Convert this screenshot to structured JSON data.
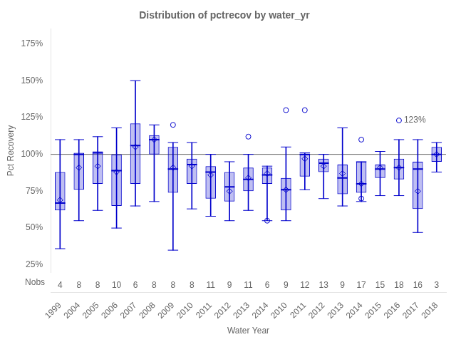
{
  "chart_data": {
    "type": "box",
    "title": "Distribution of pctrecov by water_yr",
    "xlabel": "Water Year",
    "ylabel": "Pct Recovery",
    "categories": [
      "1999",
      "2004",
      "2005",
      "2006",
      "2007",
      "2008",
      "2009",
      "2010",
      "2011",
      "2012",
      "2013",
      "2014",
      "2010",
      "2011",
      "2012",
      "2013",
      "2014",
      "2015",
      "2016",
      "2017",
      "2018"
    ],
    "nobs_label": "Nobs",
    "nobs": [
      4,
      8,
      8,
      10,
      6,
      8,
      8,
      8,
      11,
      9,
      11,
      6,
      9,
      12,
      13,
      9,
      17,
      15,
      18,
      16,
      3
    ],
    "boxes": [
      {
        "q1": 62,
        "median": 67,
        "q3": 88,
        "whislo": 36,
        "whishi": 110,
        "mean": 69,
        "fliers": []
      },
      {
        "q1": 76,
        "median": 100,
        "q3": 101,
        "whislo": 55,
        "whishi": 110,
        "mean": 91,
        "fliers": []
      },
      {
        "q1": 80,
        "median": 101,
        "q3": 102,
        "whislo": 62,
        "whishi": 112,
        "mean": 92,
        "fliers": []
      },
      {
        "q1": 65,
        "median": 89,
        "q3": 100,
        "whislo": 50,
        "whishi": 118,
        "mean": 88,
        "fliers": []
      },
      {
        "q1": 80,
        "median": 106,
        "q3": 121,
        "whislo": 65,
        "whishi": 150,
        "mean": 105,
        "fliers": []
      },
      {
        "q1": 100,
        "median": 110,
        "q3": 113,
        "whislo": 68,
        "whishi": 120,
        "mean": 110,
        "fliers": []
      },
      {
        "q1": 74,
        "median": 90,
        "q3": 105,
        "whislo": 35,
        "whishi": 108,
        "mean": 91,
        "fliers": [
          120
        ]
      },
      {
        "q1": 80,
        "median": 93,
        "q3": 97,
        "whislo": 63,
        "whishi": 108,
        "mean": 92,
        "fliers": []
      },
      {
        "q1": 70,
        "median": 88,
        "q3": 92,
        "whislo": 58,
        "whishi": 100,
        "mean": 86,
        "fliers": []
      },
      {
        "q1": 68,
        "median": 78,
        "q3": 88,
        "whislo": 55,
        "whishi": 95,
        "mean": 75,
        "fliers": []
      },
      {
        "q1": 75,
        "median": 83,
        "q3": 91,
        "whislo": 62,
        "whishi": 100,
        "mean": 84,
        "fliers": [
          112
        ]
      },
      {
        "q1": 80,
        "median": 86,
        "q3": 91,
        "whislo": 55,
        "whishi": 92,
        "mean": 87,
        "fliers": [
          55
        ]
      },
      {
        "q1": 62,
        "median": 76,
        "q3": 84,
        "whislo": 55,
        "whishi": 105,
        "mean": 76,
        "fliers": [
          130
        ]
      },
      {
        "q1": 85,
        "median": 100,
        "q3": 100,
        "whislo": 76,
        "whishi": 101,
        "mean": 97,
        "fliers": [
          130
        ]
      },
      {
        "q1": 88,
        "median": 94,
        "q3": 97,
        "whislo": 70,
        "whishi": 100,
        "mean": 92,
        "fliers": []
      },
      {
        "q1": 73,
        "median": 84,
        "q3": 93,
        "whislo": 65,
        "whishi": 118,
        "mean": 87,
        "fliers": []
      },
      {
        "q1": 74,
        "median": 80,
        "q3": 95,
        "whislo": 68,
        "whishi": 95,
        "mean": 80,
        "fliers": [
          70,
          110
        ]
      },
      {
        "q1": 84,
        "median": 90,
        "q3": 93,
        "whislo": 72,
        "whishi": 102,
        "mean": 91,
        "fliers": []
      },
      {
        "q1": 83,
        "median": 91,
        "q3": 97,
        "whislo": 72,
        "whishi": 110,
        "mean": 91,
        "fliers": [
          123
        ]
      },
      {
        "q1": 63,
        "median": 90,
        "q3": 95,
        "whislo": 47,
        "whishi": 110,
        "mean": 75,
        "fliers": []
      },
      {
        "q1": 95,
        "median": 100,
        "q3": 105,
        "whislo": 88,
        "whishi": 108,
        "mean": 100,
        "fliers": []
      }
    ],
    "ref_line": 100,
    "annotations": [
      {
        "text": "123%",
        "category": "2016",
        "y": 123
      }
    ],
    "color": "#0000cc",
    "ylim": [
      20,
      185
    ],
    "yticks": [
      {
        "value": 25,
        "label": "25%"
      },
      {
        "value": 50,
        "label": "50%"
      },
      {
        "value": 75,
        "label": "75%"
      },
      {
        "value": 100,
        "label": "100%"
      },
      {
        "value": 125,
        "label": "125%"
      },
      {
        "value": 150,
        "label": "150%"
      },
      {
        "value": 175,
        "label": "175%"
      }
    ],
    "grid": false
  }
}
